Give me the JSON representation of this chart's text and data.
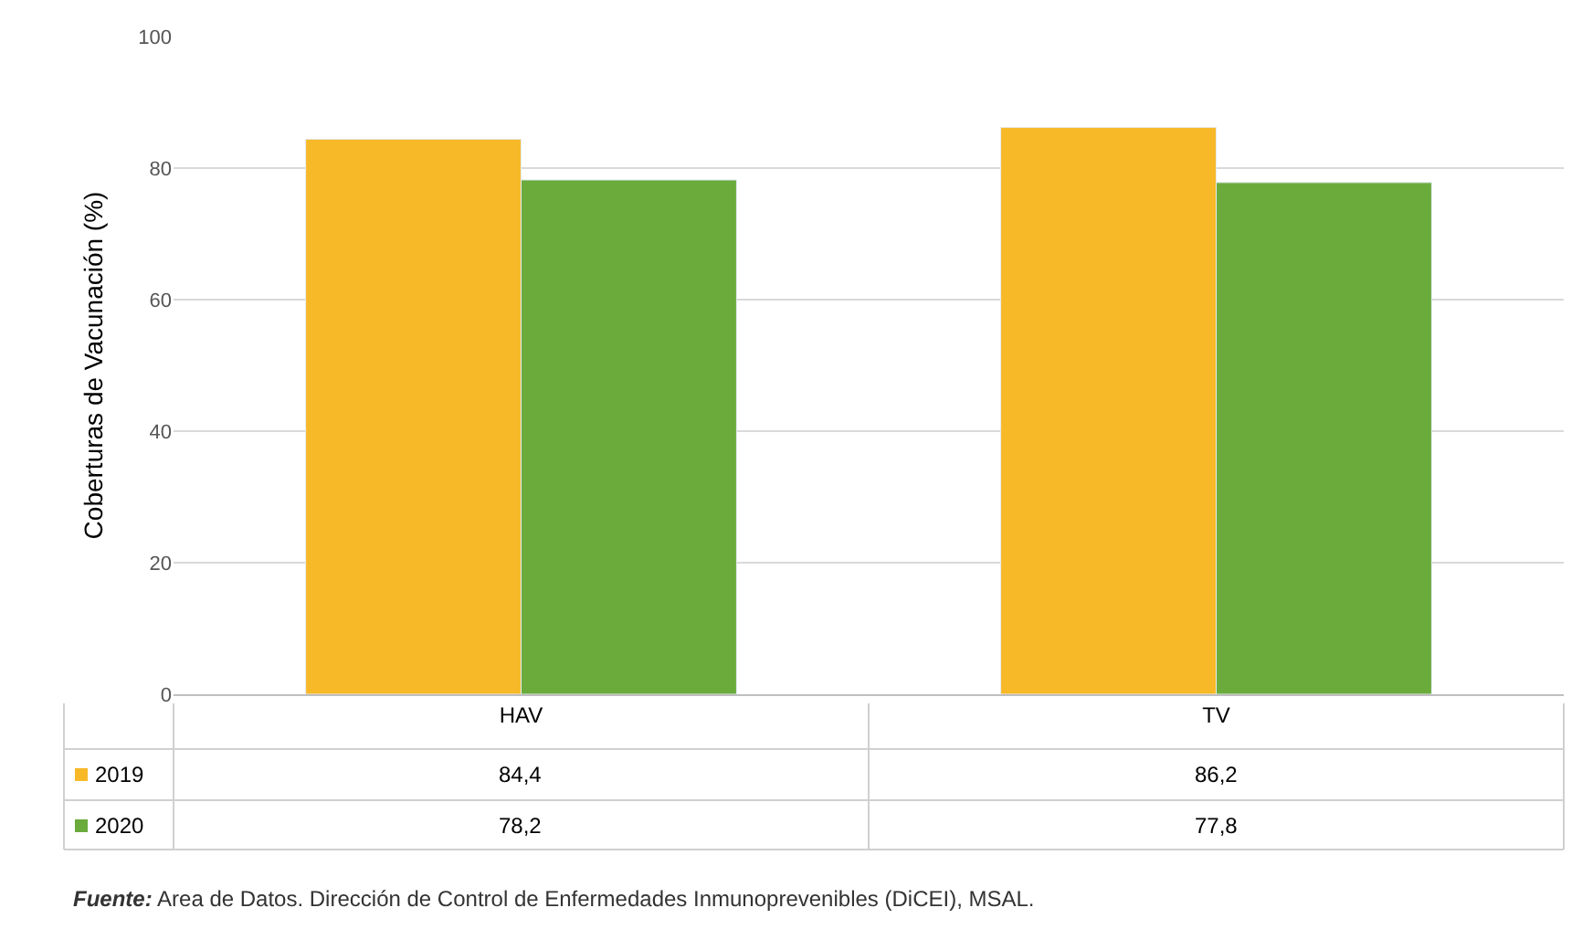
{
  "chart_data": {
    "type": "bar",
    "ylabel": "Coberturas de Vacunación (%)",
    "categories": [
      "HAV",
      "TV"
    ],
    "series": [
      {
        "name": "2019",
        "color": "#f7b928",
        "values": [
          84.4,
          86.2
        ],
        "value_labels": [
          "84,4",
          "86,2"
        ]
      },
      {
        "name": "2020",
        "color": "#6aab3c",
        "values": [
          78.2,
          77.8
        ],
        "value_labels": [
          "78,2",
          "77,8"
        ]
      }
    ],
    "ylim": [
      0,
      100
    ],
    "yticks": [
      0,
      20,
      40,
      60,
      80,
      100
    ],
    "grid": "y",
    "legend": "bottom",
    "annotations": [
      "Fuente: Area de Datos. Dirección de Control de Enfermedades Inmunoprevenibles (DiCEI), MSAL."
    ]
  }
}
